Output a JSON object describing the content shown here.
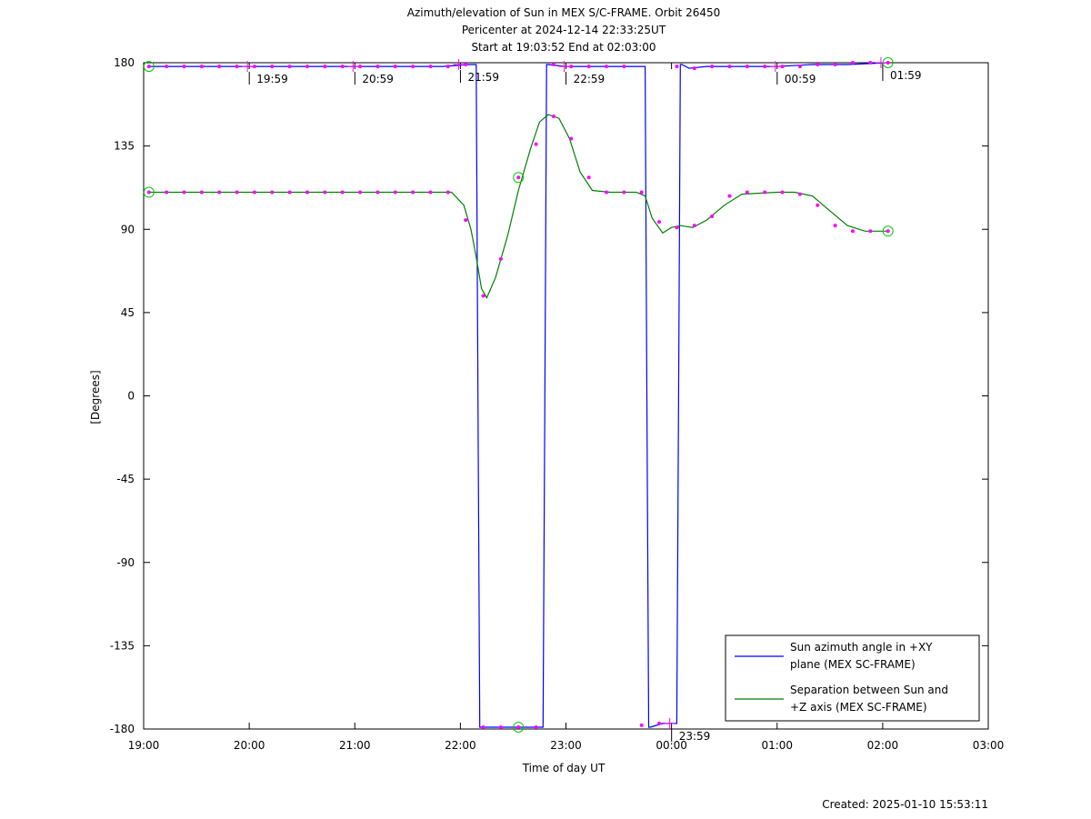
{
  "chart_data": {
    "type": "line",
    "title_lines": [
      "Azimuth/elevation of Sun in MEX S/C-FRAME.  Orbit 26450",
      "Pericenter at 2024-12-14 22:33:25UT",
      "Start at 19:03:52 End at 02:03:00"
    ],
    "xlabel": "Time of day UT",
    "ylabel": "[Degrees]",
    "xlim": [
      "19:00",
      "03:00"
    ],
    "ylim": [
      -180,
      180
    ],
    "x_ticks": [
      "19:00",
      "20:00",
      "21:00",
      "22:00",
      "23:00",
      "00:00",
      "01:00",
      "02:00",
      "03:00"
    ],
    "y_ticks": [
      "180",
      "135",
      "90",
      "45",
      "0",
      "-45",
      "-90",
      "-135",
      "-180"
    ],
    "legend_position": "bottom-right",
    "series": [
      {
        "name": "Sun azimuth angle in +XY plane (MEX SC-FRAME)",
        "legend_lines": [
          "Sun azimuth angle in +XY",
          "plane (MEX SC-FRAME)"
        ],
        "color": "#0000ff",
        "x": [
          "19:03",
          "19:30",
          "20:00",
          "20:30",
          "21:00",
          "21:30",
          "21:50",
          "22:05",
          "22:09",
          "22:10",
          "22:11",
          "22:12",
          "22:30",
          "22:45",
          "22:47",
          "22:48",
          "22:49",
          "22:50",
          "23:00",
          "23:20",
          "23:40",
          "23:45",
          "23:46",
          "23:47",
          "23:48",
          "23:55",
          "00:03",
          "00:04",
          "00:05",
          "00:06",
          "00:10",
          "00:20",
          "00:40",
          "01:00",
          "01:20",
          "01:40",
          "02:03"
        ],
        "values": [
          178,
          178,
          178,
          178,
          178,
          178,
          178,
          179,
          179,
          0,
          -179,
          -179,
          -179,
          -179,
          -179,
          0,
          179,
          179,
          178,
          178,
          178,
          178,
          0,
          -179,
          -179,
          -177,
          -177,
          0,
          179,
          179,
          177,
          178,
          178,
          178,
          179,
          179,
          180
        ]
      },
      {
        "name": "Separation between Sun and +Z axis (MEX SC-FRAME)",
        "legend_lines": [
          "Separation between Sun and",
          "+Z axis (MEX SC-FRAME)"
        ],
        "color": "#008000",
        "x": [
          "19:03",
          "19:30",
          "20:00",
          "20:30",
          "21:00",
          "21:30",
          "21:55",
          "22:02",
          "22:06",
          "22:09",
          "22:12",
          "22:15",
          "22:20",
          "22:27",
          "22:33",
          "22:40",
          "22:45",
          "22:50",
          "22:56",
          "23:02",
          "23:08",
          "23:15",
          "23:25",
          "23:30",
          "23:40",
          "23:45",
          "23:49",
          "23:55",
          "00:00",
          "00:05",
          "00:12",
          "00:20",
          "00:30",
          "00:40",
          "01:00",
          "01:10",
          "01:20",
          "01:30",
          "01:40",
          "01:50",
          "02:03"
        ],
        "values": [
          110,
          110,
          110,
          110,
          110,
          110,
          110,
          103,
          90,
          75,
          58,
          53,
          64,
          87,
          111,
          134,
          148,
          152,
          150,
          139,
          121,
          111,
          110,
          110,
          110,
          108,
          96,
          88,
          91,
          92,
          91,
          95,
          103,
          109,
          110,
          110,
          108,
          100,
          92,
          89,
          89
        ]
      }
    ],
    "marker_color": "#ff00ff",
    "circle_color": "#00cc00",
    "azimuth_markers": {
      "x": [
        "19:03",
        "19:13",
        "19:23",
        "19:33",
        "19:43",
        "19:53",
        "20:03",
        "20:13",
        "20:23",
        "20:33",
        "20:43",
        "20:53",
        "21:03",
        "21:13",
        "21:23",
        "21:33",
        "21:43",
        "21:53",
        "22:03",
        "22:13",
        "22:23",
        "22:33",
        "22:43",
        "22:53",
        "23:03",
        "23:13",
        "23:23",
        "23:33",
        "23:43",
        "23:53",
        "00:03",
        "00:13",
        "00:23",
        "00:33",
        "00:43",
        "00:53",
        "01:03",
        "01:13",
        "01:23",
        "01:33",
        "01:43",
        "01:53",
        "02:03"
      ],
      "values": [
        178,
        178,
        178,
        178,
        178,
        178,
        178,
        178,
        178,
        178,
        178,
        178,
        178,
        178,
        178,
        178,
        178,
        178,
        179,
        -179,
        -179,
        -179,
        -179,
        179,
        178,
        178,
        178,
        178,
        -178,
        -177,
        178,
        177,
        178,
        178,
        178,
        178,
        178,
        178,
        179,
        179,
        180,
        180,
        180
      ]
    },
    "separation_markers": {
      "x": [
        "19:03",
        "19:13",
        "19:23",
        "19:33",
        "19:43",
        "19:53",
        "20:03",
        "20:13",
        "20:23",
        "20:33",
        "20:43",
        "20:53",
        "21:03",
        "21:13",
        "21:23",
        "21:33",
        "21:43",
        "21:53",
        "22:03",
        "22:13",
        "22:23",
        "22:33",
        "22:43",
        "22:53",
        "23:03",
        "23:13",
        "23:23",
        "23:33",
        "23:43",
        "23:53",
        "00:03",
        "00:13",
        "00:23",
        "00:33",
        "00:43",
        "00:53",
        "01:03",
        "01:13",
        "01:23",
        "01:33",
        "01:43",
        "01:53",
        "02:03"
      ],
      "values": [
        110,
        110,
        110,
        110,
        110,
        110,
        110,
        110,
        110,
        110,
        110,
        110,
        110,
        110,
        110,
        110,
        110,
        110,
        95,
        54,
        74,
        118,
        136,
        151,
        139,
        118,
        110,
        110,
        110,
        94,
        91,
        92,
        97,
        108,
        110,
        110,
        110,
        109,
        103,
        92,
        89,
        89,
        89
      ]
    },
    "hour_tick_marks": [
      {
        "label": "19:59",
        "x": "19:59",
        "y": 178
      },
      {
        "label": "20:59",
        "x": "20:59",
        "y": 178
      },
      {
        "label": "21:59",
        "x": "21:59",
        "y": 179
      },
      {
        "label": "22:59",
        "x": "22:59",
        "y": 178
      },
      {
        "label": "23:59",
        "x": "23:59",
        "y": -177
      },
      {
        "label": "00:59",
        "x": "00:59",
        "y": 178
      },
      {
        "label": "01:59",
        "x": "01:59",
        "y": 180
      }
    ],
    "circle_markers": [
      {
        "x": "19:03",
        "y": 178
      },
      {
        "x": "19:03",
        "y": 110
      },
      {
        "x": "22:33",
        "y": 118
      },
      {
        "x": "22:33",
        "y": -179
      },
      {
        "x": "02:03",
        "y": 180
      },
      {
        "x": "02:03",
        "y": 89
      }
    ]
  },
  "footer": {
    "created": "Created: 2025-01-10 15:53:11"
  }
}
